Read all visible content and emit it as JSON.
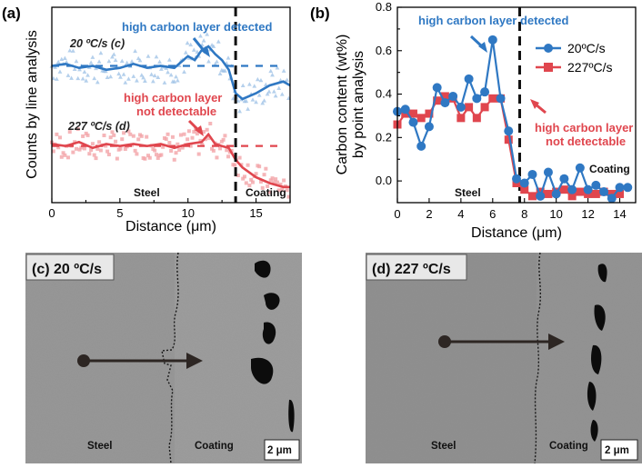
{
  "chart_data": [
    {
      "panel": "(a)",
      "type": "scatter",
      "xlabel": "Distance (μm)",
      "ylabel": "Counts by line analysis",
      "xlim": [
        0,
        17.5
      ],
      "x_ticks": [
        "0",
        "5",
        "10",
        "15"
      ],
      "annotations": {
        "blue_note": "high carbon layer detected",
        "red_note_line1": "high carbon layer",
        "red_note_line2": "not detectable",
        "steel": "Steel",
        "coating": "Coating",
        "series_c_label": "20 ºC/s (c)",
        "series_d_label": "227 ºC/s (d)"
      },
      "interface_x": 13.5,
      "series": [
        {
          "name": "20 ºC/s (c)",
          "color": "#2f78c3",
          "mean_level": 0.7,
          "smooth_x": [
            0,
            1,
            2,
            3,
            4,
            5,
            6,
            7,
            8,
            9,
            10,
            10.5,
            11,
            11.5,
            12,
            12.5,
            13,
            13.5,
            14,
            15,
            16,
            17,
            17.5
          ],
          "smooth_y": [
            0.7,
            0.71,
            0.69,
            0.7,
            0.68,
            0.69,
            0.71,
            0.69,
            0.7,
            0.69,
            0.75,
            0.73,
            0.78,
            0.8,
            0.76,
            0.73,
            0.68,
            0.56,
            0.53,
            0.56,
            0.6,
            0.62,
            0.6
          ]
        },
        {
          "name": "227 ºC/s (d)",
          "color": "#e0464e",
          "mean_level": 0.29,
          "smooth_x": [
            0,
            1,
            2,
            3,
            4,
            5,
            6,
            7,
            8,
            9,
            10,
            11,
            11.5,
            12,
            12.5,
            13,
            13.5,
            14,
            15,
            16,
            17,
            17.5
          ],
          "smooth_y": [
            0.3,
            0.29,
            0.31,
            0.28,
            0.3,
            0.29,
            0.3,
            0.29,
            0.3,
            0.28,
            0.3,
            0.31,
            0.35,
            0.3,
            0.29,
            0.28,
            0.22,
            0.18,
            0.13,
            0.1,
            0.08,
            0.08
          ]
        }
      ]
    },
    {
      "panel": "(b)",
      "type": "line",
      "xlabel": "Distance (μm)",
      "ylabel_line1": "Carbon content (wt%)",
      "ylabel_line2": "by point analysis",
      "xlim": [
        0,
        15
      ],
      "ylim": [
        -0.1,
        0.8
      ],
      "x_ticks": [
        "0",
        "2",
        "4",
        "6",
        "8",
        "10",
        "12",
        "14"
      ],
      "y_ticks": [
        "0.0",
        "0.2",
        "0.4",
        "0.6",
        "0.8"
      ],
      "interface_x": 7.7,
      "annotations": {
        "blue_note": "high carbon layer detected",
        "red_note_line1": "high carbon layer",
        "red_note_line2": "not detectable",
        "steel": "Steel",
        "coating": "Coating"
      },
      "legend": [
        "20ºC/s",
        "227ºC/s"
      ],
      "legend_position": "top-right",
      "series": [
        {
          "name": "20ºC/s",
          "color": "#2f78c3",
          "marker": "circle",
          "x": [
            0,
            0.5,
            1,
            1.5,
            2,
            2.5,
            3,
            3.5,
            4,
            4.5,
            5,
            5.5,
            6,
            6.5,
            7,
            7.5,
            8,
            8.5,
            9,
            9.5,
            10,
            10.5,
            11,
            11.5,
            12,
            12.5,
            13,
            13.5,
            14,
            14.5
          ],
          "y": [
            0.32,
            0.33,
            0.27,
            0.16,
            0.25,
            0.43,
            0.36,
            0.39,
            0.34,
            0.47,
            0.38,
            0.41,
            0.65,
            0.38,
            0.23,
            0.01,
            -0.01,
            0.03,
            -0.07,
            0.04,
            -0.06,
            0.01,
            -0.04,
            0.06,
            -0.04,
            -0.02,
            -0.05,
            -0.08,
            -0.03,
            -0.03
          ]
        },
        {
          "name": "227ºC/s",
          "color": "#e0464e",
          "marker": "square",
          "x": [
            0,
            0.5,
            1,
            1.5,
            2,
            2.5,
            3,
            3.5,
            4,
            4.5,
            5,
            5.5,
            6,
            6.5,
            7,
            7.5,
            8,
            8.5,
            9,
            9.5,
            10,
            10.5,
            11,
            11.5,
            12,
            12.5,
            13,
            13.5,
            14
          ],
          "y": [
            0.26,
            0.31,
            0.31,
            0.29,
            0.31,
            0.37,
            0.39,
            0.38,
            0.29,
            0.34,
            0.29,
            0.34,
            0.38,
            0.38,
            0.19,
            -0.01,
            -0.04,
            -0.07,
            -0.05,
            -0.06,
            -0.05,
            -0.04,
            -0.07,
            -0.05,
            -0.06,
            -0.06,
            -0.05,
            -0.06,
            -0.06
          ]
        }
      ]
    }
  ],
  "micrographs": [
    {
      "label": "(c) 20 ºC/s",
      "left": "Steel",
      "right": "Coating",
      "scale": "2 μm"
    },
    {
      "label": "(d) 227 ºC/s",
      "left": "Steel",
      "right": "Coating",
      "scale": "2 μm"
    }
  ],
  "panel_labels": {
    "a": "(a)",
    "b": "(b)"
  }
}
